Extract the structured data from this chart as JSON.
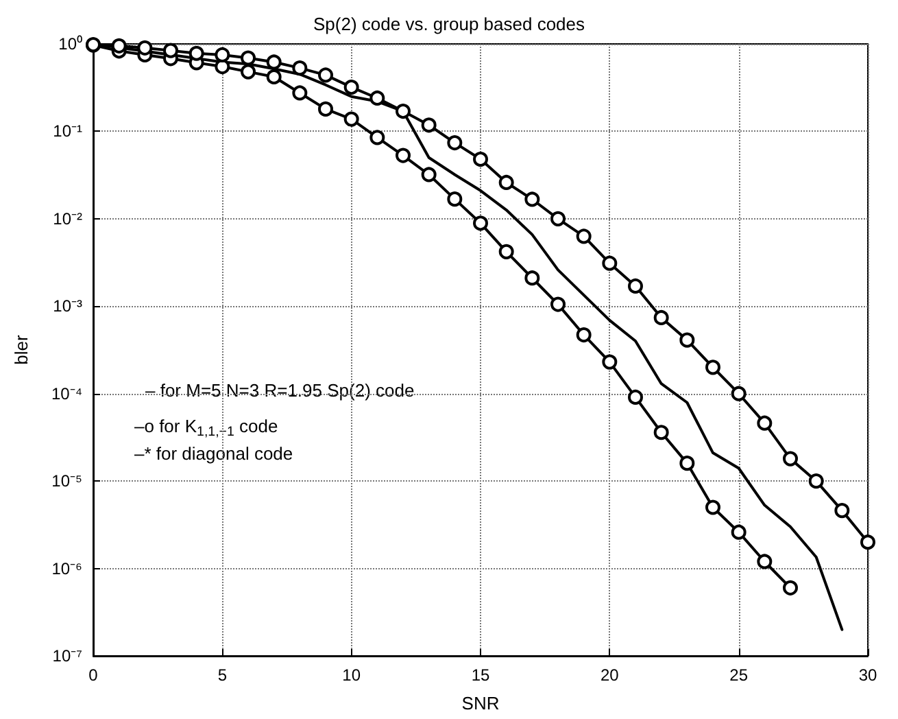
{
  "chart_data": {
    "type": "line",
    "title": "Sp(2) code vs. group based codes",
    "xlabel": "SNR",
    "ylabel": "bler",
    "x": [
      0,
      1,
      2,
      3,
      4,
      5,
      6,
      7,
      8,
      9,
      10,
      11,
      12,
      13,
      14,
      15,
      16,
      17,
      18,
      19,
      20,
      21,
      22,
      23,
      24,
      25,
      26,
      27,
      28,
      29,
      30
    ],
    "series": [
      {
        "color": "#000000",
        "marker": "none",
        "x": [
          0,
          5,
          6,
          7,
          8,
          9,
          10,
          11,
          12,
          13,
          14,
          15,
          16,
          17,
          18,
          19,
          20,
          21,
          22,
          23,
          24,
          25,
          26,
          27,
          28,
          29
        ],
        "values": [
          1.0,
          0.62,
          0.59,
          0.52,
          0.45,
          0.34,
          0.25,
          0.22,
          0.17,
          0.05,
          0.032,
          0.021,
          0.0126,
          0.0066,
          0.0026,
          0.00134,
          0.00069,
          0.0004,
          0.00013,
          7.9e-05,
          2.1e-05,
          1.4e-05,
          5.3e-06,
          3e-06,
          1.35e-06,
          2e-07
        ]
      },
      {
        "color": "#000000",
        "marker": "circle",
        "x": [
          0,
          1,
          2,
          3,
          4,
          5,
          6,
          7,
          8,
          9,
          10,
          11,
          12,
          13,
          14,
          15,
          16,
          17,
          18,
          19,
          20,
          21,
          22,
          23,
          24,
          25,
          26,
          27
        ],
        "values": [
          0.97,
          0.83,
          0.75,
          0.68,
          0.61,
          0.55,
          0.48,
          0.42,
          0.275,
          0.18,
          0.138,
          0.085,
          0.053,
          0.032,
          0.0168,
          0.0089,
          0.0042,
          0.0021,
          0.00105,
          0.00047,
          0.00023,
          9.1e-05,
          3.6e-05,
          1.6e-05,
          5e-06,
          2.6e-06,
          1.2e-06,
          6e-07
        ]
      },
      {
        "color": "#000000",
        "marker": "circle",
        "values": [
          0.98,
          0.95,
          0.9,
          0.84,
          0.78,
          0.75,
          0.69,
          0.62,
          0.53,
          0.44,
          0.32,
          0.24,
          0.17,
          0.118,
          0.074,
          0.048,
          0.026,
          0.0167,
          0.01,
          0.0063,
          0.0031,
          0.0017,
          0.00074,
          0.00041,
          0.0002,
          0.0001,
          4.6e-05,
          1.8e-05,
          1e-05,
          4.6e-06,
          2e-06
        ]
      }
    ],
    "annotations": [
      "– for M=5 N=3 R=1.95 Sp(2) code",
      "–o for K$_{1,1,−1}$ code",
      "–* for diagonal code"
    ],
    "xlim": [
      0,
      30
    ],
    "xticks": [
      0,
      5,
      10,
      15,
      20,
      25,
      30
    ],
    "ylim": [
      1e-07,
      1
    ],
    "yticks": [
      {
        "value": 1e-07,
        "label": "10⁻⁷"
      },
      {
        "value": 1e-06,
        "label": "10⁻⁶"
      },
      {
        "value": 1e-05,
        "label": "10⁻⁵"
      },
      {
        "value": 0.0001,
        "label": "10⁻⁴"
      },
      {
        "value": 0.001,
        "label": "10⁻³"
      },
      {
        "value": 0.01,
        "label": "10⁻²"
      },
      {
        "value": 0.1,
        "label": "10⁻¹"
      },
      {
        "value": 1,
        "label": "10⁰"
      }
    ],
    "log": "y",
    "grid": true,
    "line_style": "solid"
  }
}
